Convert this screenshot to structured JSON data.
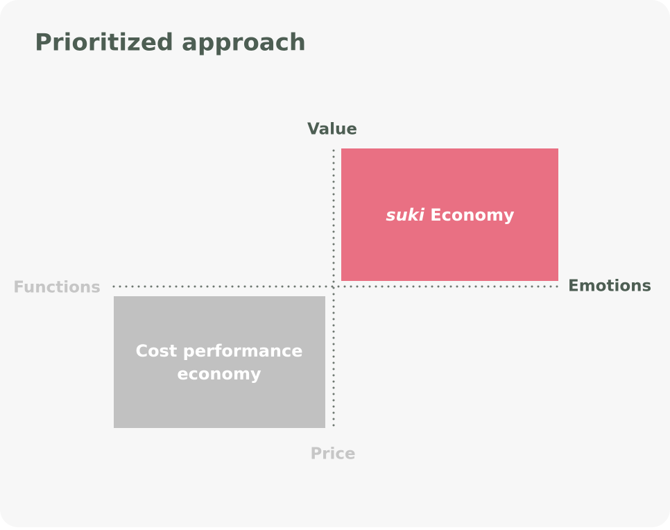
{
  "title": "Prioritized approach",
  "axes": {
    "top": "Value",
    "bottom": "Price",
    "left": "Functions",
    "right": "Emotions"
  },
  "quadrants": [
    {
      "label_emphasis": "suki",
      "label": "Economy"
    },
    {
      "lines": [
        "Cost performance",
        "economy"
      ]
    }
  ]
}
